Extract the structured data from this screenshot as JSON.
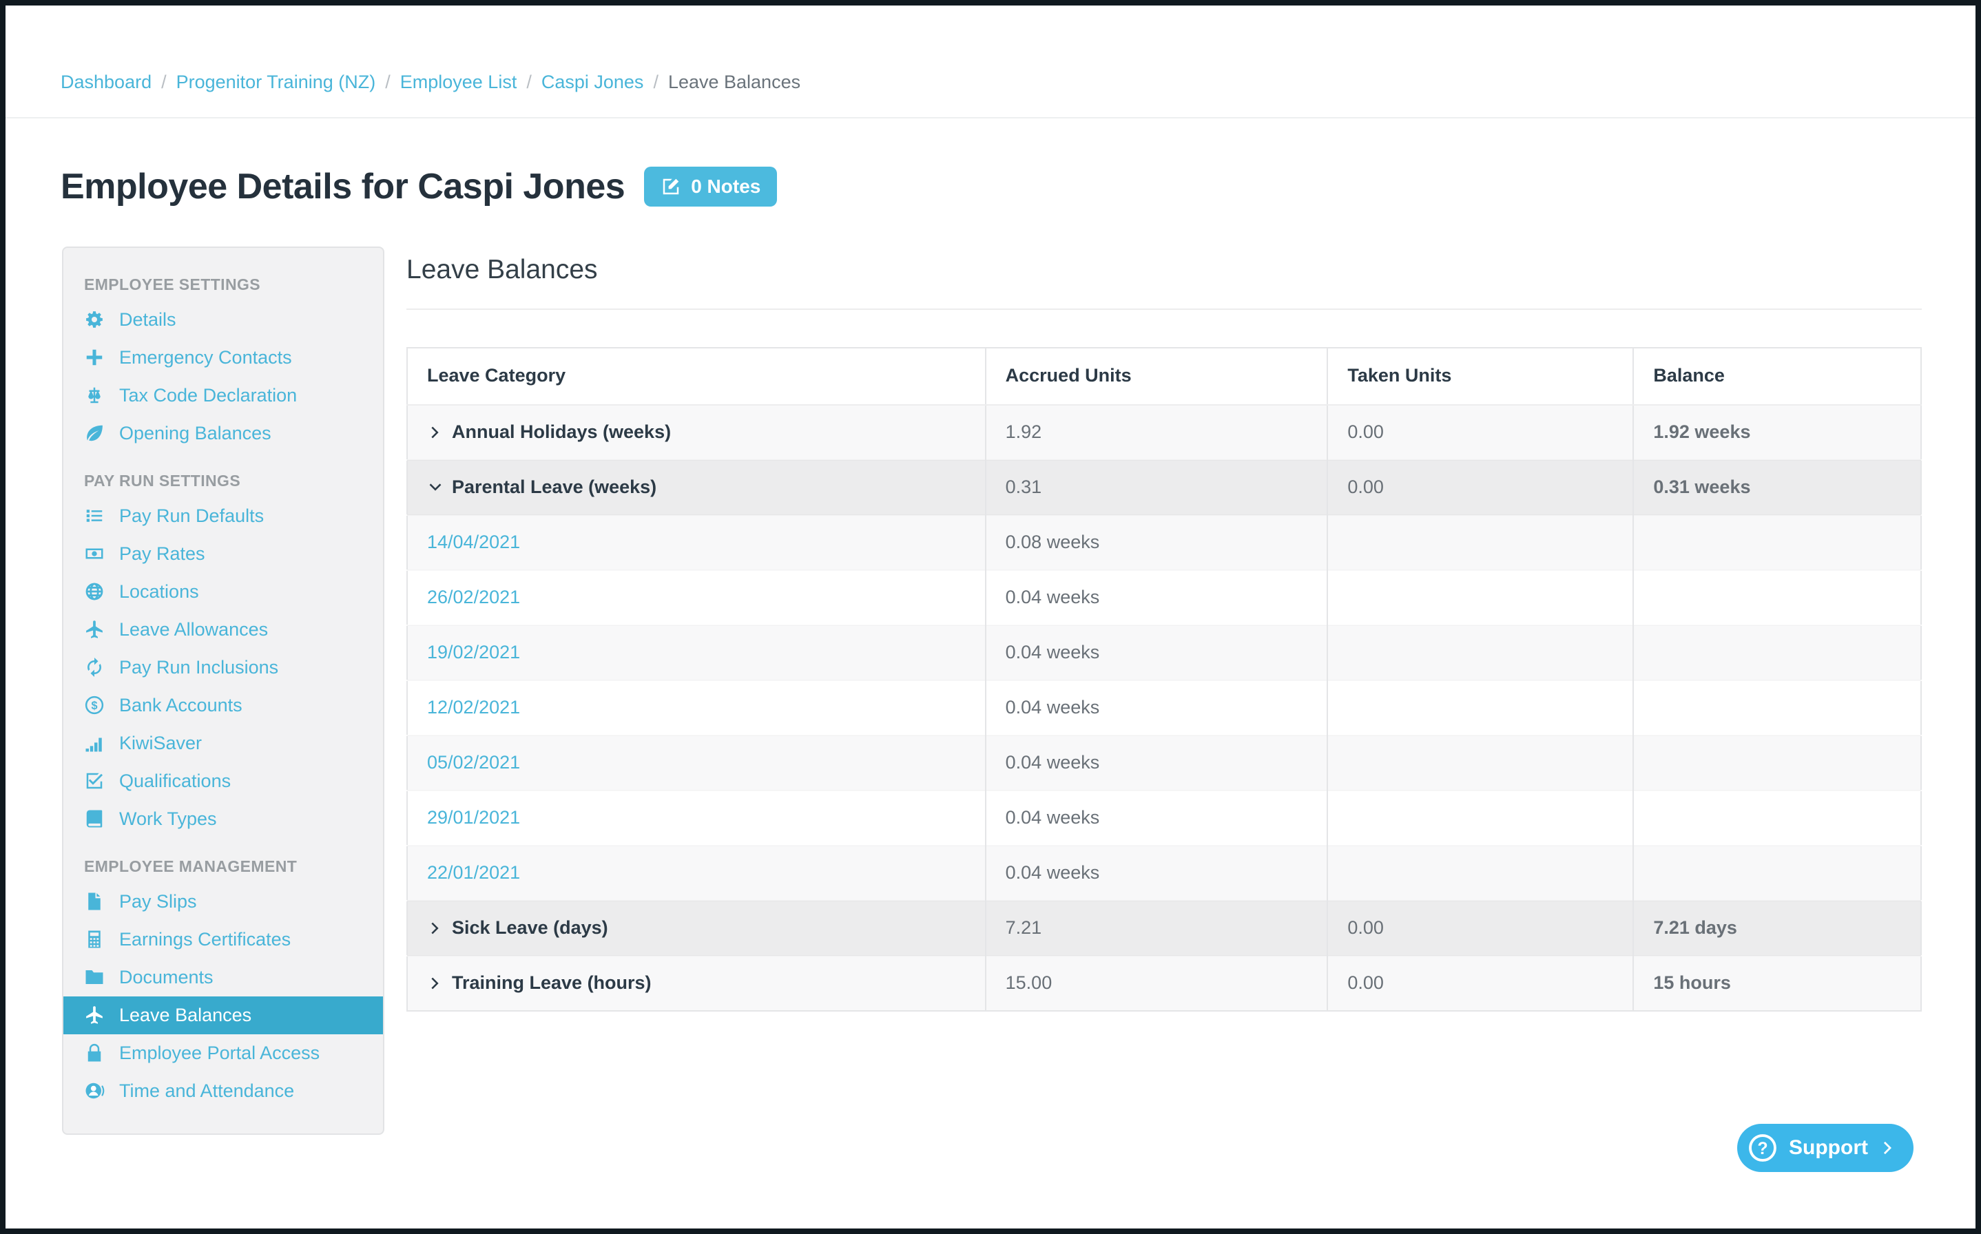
{
  "breadcrumb": {
    "separator": "/",
    "items": [
      {
        "label": "Dashboard",
        "link": true
      },
      {
        "label": "Progenitor Training (NZ)",
        "link": true
      },
      {
        "label": "Employee List",
        "link": true
      },
      {
        "label": "Caspi Jones",
        "link": true
      },
      {
        "label": "Leave Balances",
        "link": false
      }
    ]
  },
  "page": {
    "title": "Employee Details for Caspi Jones",
    "notes_button_label": "0 Notes",
    "notes_button_icon": "edit-note-icon"
  },
  "sidebar": {
    "sections": [
      {
        "label": "EMPLOYEE SETTINGS",
        "items": [
          {
            "label": "Details",
            "icon": "gear-icon",
            "slug": "details"
          },
          {
            "label": "Emergency Contacts",
            "icon": "plus-icon",
            "slug": "emergency-contacts"
          },
          {
            "label": "Tax Code Declaration",
            "icon": "scales-icon",
            "slug": "tax-code-declaration"
          },
          {
            "label": "Opening Balances",
            "icon": "leaf-icon",
            "slug": "opening-balances"
          }
        ]
      },
      {
        "label": "PAY RUN SETTINGS",
        "items": [
          {
            "label": "Pay Run Defaults",
            "icon": "list-icon",
            "slug": "pay-run-defaults"
          },
          {
            "label": "Pay Rates",
            "icon": "banknote-icon",
            "slug": "pay-rates"
          },
          {
            "label": "Locations",
            "icon": "globe-icon",
            "slug": "locations"
          },
          {
            "label": "Leave Allowances",
            "icon": "plane-icon",
            "slug": "leave-allowances"
          },
          {
            "label": "Pay Run Inclusions",
            "icon": "sync-icon",
            "slug": "pay-run-inclusions"
          },
          {
            "label": "Bank Accounts",
            "icon": "dollar-circle-icon",
            "slug": "bank-accounts"
          },
          {
            "label": "KiwiSaver",
            "icon": "bar-chart-icon",
            "slug": "kiwisaver"
          },
          {
            "label": "Qualifications",
            "icon": "check-square-icon",
            "slug": "qualifications"
          },
          {
            "label": "Work Types",
            "icon": "book-icon",
            "slug": "work-types"
          }
        ]
      },
      {
        "label": "EMPLOYEE MANAGEMENT",
        "items": [
          {
            "label": "Pay Slips",
            "icon": "file-icon",
            "slug": "pay-slips"
          },
          {
            "label": "Earnings Certificates",
            "icon": "calculator-icon",
            "slug": "earnings-certificates"
          },
          {
            "label": "Documents",
            "icon": "folder-icon",
            "slug": "documents"
          },
          {
            "label": "Leave Balances",
            "icon": "plane-icon",
            "slug": "leave-balances",
            "active": true
          },
          {
            "label": "Employee Portal Access",
            "icon": "lock-icon",
            "slug": "employee-portal-access"
          },
          {
            "label": "Time and Attendance",
            "icon": "user-clock-icon",
            "slug": "time-and-attendance"
          }
        ]
      }
    ]
  },
  "main": {
    "heading": "Leave Balances",
    "table": {
      "columns": [
        "Leave Category",
        "Accrued Units",
        "Taken Units",
        "Balance"
      ],
      "rows": [
        {
          "type": "category",
          "state": "collapsed",
          "label": "Annual Holidays (weeks)",
          "accrued": "1.92",
          "taken": "0.00",
          "balance": "1.92 weeks"
        },
        {
          "type": "category",
          "state": "expanded",
          "label": "Parental Leave (weeks)",
          "accrued": "0.31",
          "taken": "0.00",
          "balance": "0.31 weeks"
        },
        {
          "type": "date",
          "label": "14/04/2021",
          "accrued": "0.08 weeks",
          "taken": "",
          "balance": ""
        },
        {
          "type": "date",
          "label": "26/02/2021",
          "accrued": "0.04 weeks",
          "taken": "",
          "balance": ""
        },
        {
          "type": "date",
          "label": "19/02/2021",
          "accrued": "0.04 weeks",
          "taken": "",
          "balance": ""
        },
        {
          "type": "date",
          "label": "12/02/2021",
          "accrued": "0.04 weeks",
          "taken": "",
          "balance": ""
        },
        {
          "type": "date",
          "label": "05/02/2021",
          "accrued": "0.04 weeks",
          "taken": "",
          "balance": ""
        },
        {
          "type": "date",
          "label": "29/01/2021",
          "accrued": "0.04 weeks",
          "taken": "",
          "balance": ""
        },
        {
          "type": "date",
          "label": "22/01/2021",
          "accrued": "0.04 weeks",
          "taken": "",
          "balance": ""
        },
        {
          "type": "category",
          "state": "collapsed",
          "label": "Sick Leave (days)",
          "accrued": "7.21",
          "taken": "0.00",
          "balance": "7.21 days"
        },
        {
          "type": "category",
          "state": "collapsed",
          "label": "Training Leave (hours)",
          "accrued": "15.00",
          "taken": "0.00",
          "balance": "15 hours"
        }
      ]
    }
  },
  "support": {
    "label": "Support",
    "icon": "question-circle-icon",
    "chevron": "chevron-right-icon"
  },
  "colors": {
    "link_blue": "#49b5d9",
    "active_item": "#38aacd",
    "notes_button": "#4cbade",
    "support_button": "#3cb7ea",
    "heading_navy": "#2c3a46"
  }
}
